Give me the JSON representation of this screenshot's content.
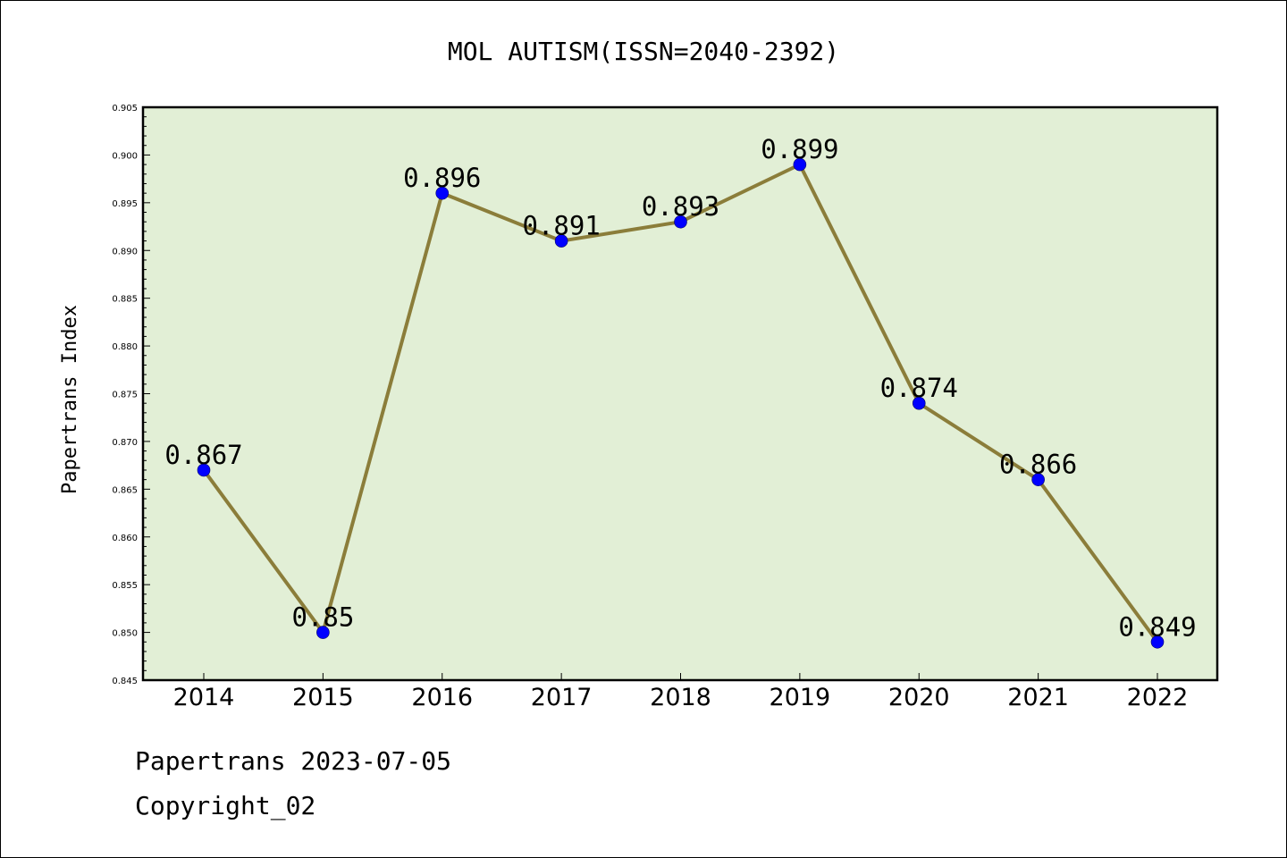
{
  "chart_data": {
    "type": "line",
    "title": "MOL AUTISM(ISSN=2040-2392)",
    "ylabel": "Papertrans Index",
    "xlabel": "",
    "categories": [
      "2014",
      "2015",
      "2016",
      "2017",
      "2018",
      "2019",
      "2020",
      "2021",
      "2022"
    ],
    "series": [
      {
        "values": [
          0.867,
          0.85,
          0.896,
          0.891,
          0.893,
          0.899,
          0.874,
          0.866,
          0.849
        ],
        "labels": [
          "0.867",
          "0.85",
          "0.896",
          "0.891",
          "0.893",
          "0.899",
          "0.874",
          "0.866",
          "0.849"
        ]
      }
    ],
    "ylim": [
      0.845,
      0.905
    ],
    "yticks": [
      "0.845",
      "0.850",
      "0.855",
      "0.860",
      "0.865",
      "0.870",
      "0.875",
      "0.880",
      "0.885",
      "0.890",
      "0.895",
      "0.900",
      "0.905"
    ],
    "grid": false,
    "colors": {
      "plot_background": "#e2efd6",
      "line": "#8b7d3a",
      "marker": "#0000ff",
      "axis": "#000000"
    }
  },
  "footer": {
    "line1": "Papertrans 2023-07-05",
    "line2": "Copyright_02"
  }
}
